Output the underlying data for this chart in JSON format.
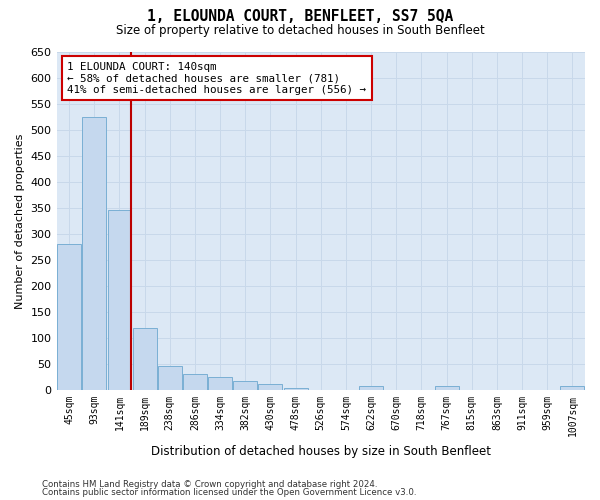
{
  "title": "1, ELOUNDA COURT, BENFLEET, SS7 5QA",
  "subtitle": "Size of property relative to detached houses in South Benfleet",
  "xlabel": "Distribution of detached houses by size in South Benfleet",
  "ylabel": "Number of detached properties",
  "footer_line1": "Contains HM Land Registry data © Crown copyright and database right 2024.",
  "footer_line2": "Contains public sector information licensed under the Open Government Licence v3.0.",
  "bar_color": "#c5d8ee",
  "bar_edge_color": "#7aafd4",
  "grid_color": "#c8d8ea",
  "bg_color": "#dce8f5",
  "annotation_box_color": "#cc0000",
  "property_line_color": "#bb0000",
  "categories": [
    "45sqm",
    "93sqm",
    "141sqm",
    "189sqm",
    "238sqm",
    "286sqm",
    "334sqm",
    "382sqm",
    "430sqm",
    "478sqm",
    "526sqm",
    "574sqm",
    "622sqm",
    "670sqm",
    "718sqm",
    "767sqm",
    "815sqm",
    "863sqm",
    "911sqm",
    "959sqm",
    "1007sqm"
  ],
  "values": [
    280,
    525,
    345,
    120,
    47,
    32,
    25,
    18,
    12,
    5,
    0,
    0,
    8,
    0,
    0,
    8,
    0,
    0,
    0,
    0,
    8
  ],
  "ylim": [
    0,
    650
  ],
  "yticks": [
    0,
    50,
    100,
    150,
    200,
    250,
    300,
    350,
    400,
    450,
    500,
    550,
    600,
    650
  ],
  "annotation_line1": "1 ELOUNDA COURT: 140sqm",
  "annotation_line2": "← 58% of detached houses are smaller (781)",
  "annotation_line3": "41% of semi-detached houses are larger (556) →",
  "property_bar_index": 2
}
